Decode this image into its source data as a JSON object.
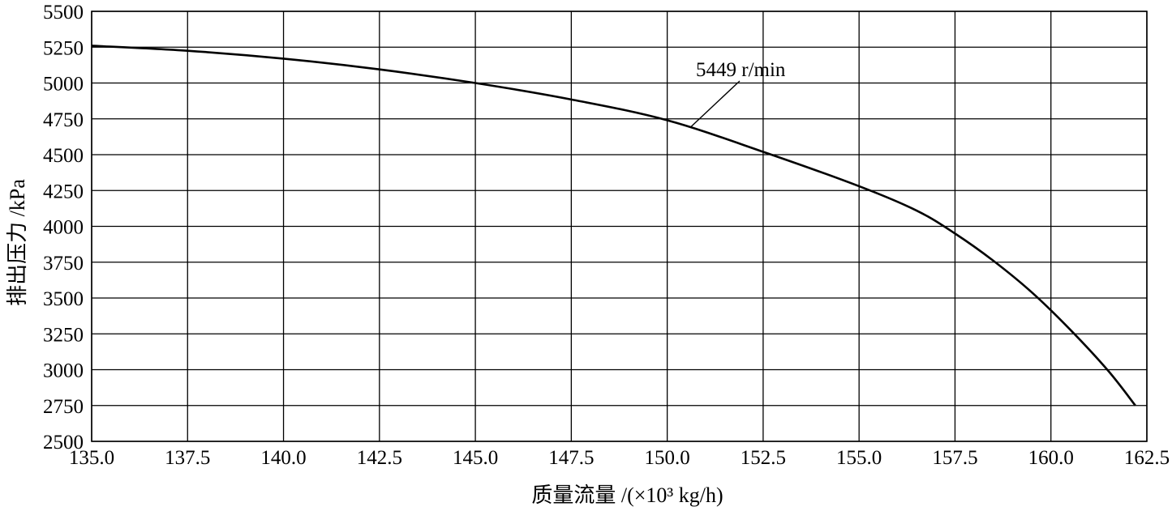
{
  "chart_data": {
    "type": "line",
    "title": "",
    "xlabel": "质量流量 /(×10³ kg/h)",
    "ylabel": "排出压力 /kPa",
    "xlim": [
      135.0,
      162.5
    ],
    "ylim": [
      2500,
      5500
    ],
    "x_ticks": [
      "135.0",
      "137.5",
      "140.0",
      "142.5",
      "145.0",
      "147.5",
      "150.0",
      "152.5",
      "155.0",
      "157.5",
      "160.0",
      "162.5"
    ],
    "y_ticks": [
      "2500",
      "2750",
      "3000",
      "3250",
      "3500",
      "3750",
      "4000",
      "4250",
      "4500",
      "4750",
      "5000",
      "5250",
      "5500"
    ],
    "grid": true,
    "legend": "none",
    "line_color": "#000000",
    "series": [
      {
        "name": "5449 r/min",
        "x": [
          135.0,
          137.5,
          140.0,
          142.5,
          145.0,
          147.5,
          150.0,
          152.5,
          155.0,
          156.5,
          157.5,
          158.5,
          159.5,
          160.5,
          161.5,
          162.2
        ],
        "y": [
          5260,
          5225,
          5170,
          5095,
          5000,
          4885,
          4740,
          4520,
          4280,
          4110,
          3950,
          3760,
          3540,
          3280,
          2990,
          2750
        ]
      }
    ],
    "annotations": [
      {
        "text": "5449 r/min",
        "x": 150.6,
        "y": 4690
      }
    ]
  }
}
